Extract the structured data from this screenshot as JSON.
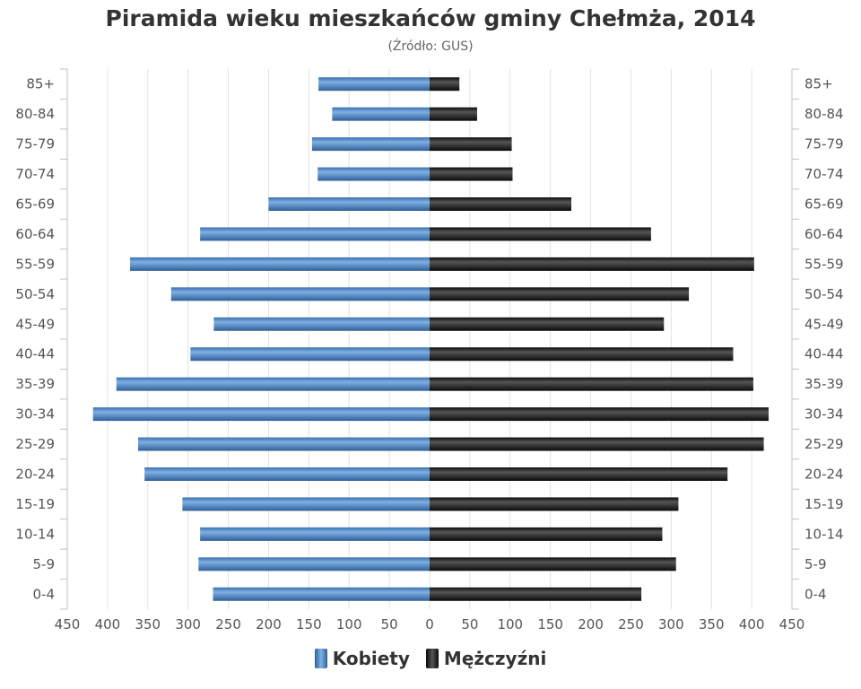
{
  "chart_data": {
    "type": "bar",
    "orientation": "horizontal",
    "title": "Piramida wieku mieszkańców gminy Chełmża, 2014",
    "subtitle": "(Źródło: GUS)",
    "categories": [
      "85+",
      "80-84",
      "75-79",
      "70-74",
      "65-69",
      "60-64",
      "55-59",
      "50-54",
      "45-49",
      "40-44",
      "35-39",
      "30-34",
      "25-29",
      "20-24",
      "15-19",
      "10-14",
      "5-9",
      "0-4"
    ],
    "series": [
      {
        "name": "Kobiety",
        "color": "#4a86c8",
        "values": [
          138,
          121,
          146,
          139,
          200,
          285,
          372,
          321,
          268,
          297,
          389,
          418,
          362,
          354,
          307,
          285,
          287,
          269
        ]
      },
      {
        "name": "Mężczyźni",
        "color": "#1f1f1f",
        "values": [
          37,
          59,
          102,
          103,
          176,
          275,
          403,
          322,
          291,
          377,
          402,
          421,
          415,
          370,
          309,
          289,
          306,
          263
        ]
      }
    ],
    "x_ticks": [
      "450",
      "400",
      "350",
      "300",
      "250",
      "200",
      "150",
      "100",
      "50",
      "0",
      "50",
      "100",
      "150",
      "200",
      "250",
      "300",
      "350",
      "400",
      "450"
    ],
    "xlim": [
      -450,
      450
    ],
    "grid": true,
    "legend_position": "bottom-center"
  }
}
